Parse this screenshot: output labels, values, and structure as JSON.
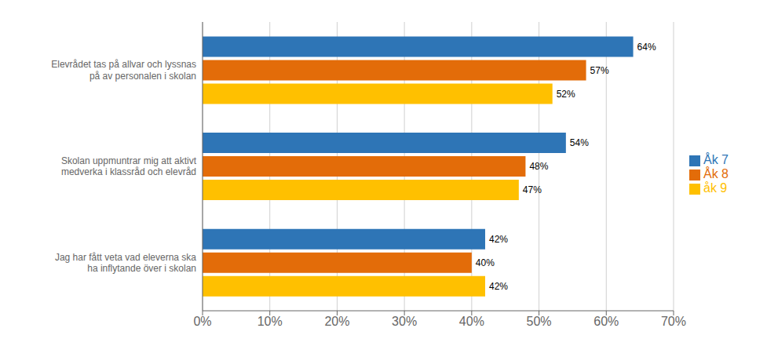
{
  "chart_data": {
    "type": "bar",
    "orientation": "horizontal",
    "categories": [
      "Jag har fått veta vad eleverna ska\nha inflytande över i skolan",
      "Skolan uppmuntrar mig att aktivt\nmedverka i klassråd och elevråd",
      "Elevrådet tas på allvar och lyssnas\npå av personalen i skolan"
    ],
    "series": [
      {
        "name": "Åk 7",
        "color": "#2E75B6",
        "values": [
          42,
          54,
          64
        ],
        "value_labels": [
          "42%",
          "54%",
          "64%"
        ]
      },
      {
        "name": "Åk 8",
        "color": "#E36C09",
        "values": [
          40,
          48,
          57
        ],
        "value_labels": [
          "40%",
          "48%",
          "57%"
        ]
      },
      {
        "name": "åk 9",
        "color": "#FFC000",
        "values": [
          42,
          47,
          52
        ],
        "value_labels": [
          "42%",
          "47%",
          "52%"
        ]
      }
    ],
    "xlim": [
      0,
      70
    ],
    "xticks": [
      {
        "value": 0,
        "label": "0%"
      },
      {
        "value": 10,
        "label": "10%"
      },
      {
        "value": 20,
        "label": "20%"
      },
      {
        "value": 30,
        "label": "30%"
      },
      {
        "value": 40,
        "label": "40%"
      },
      {
        "value": 50,
        "label": "50%"
      },
      {
        "value": 60,
        "label": "60%"
      },
      {
        "value": 70,
        "label": "70%"
      }
    ],
    "grid": true,
    "legend": "right",
    "data_labels": true
  }
}
